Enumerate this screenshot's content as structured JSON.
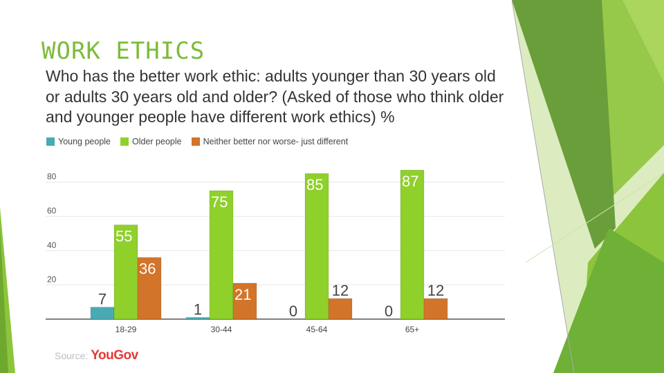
{
  "slide": {
    "title": "WORK ETHICS",
    "question": "Who has the better work ethic: adults younger than 30 years old or adults 30 years old and older? (Asked of those who think older and younger people have different work ethics) %"
  },
  "source": {
    "label": "Source:",
    "brand": "YouGov"
  },
  "colors": {
    "young": "#4aaab3",
    "older": "#8fd02b",
    "neither": "#d2742a",
    "accent": "#7dbb3a"
  },
  "chart_data": {
    "type": "bar",
    "categories": [
      "18-29",
      "30-44",
      "45-64",
      "65+"
    ],
    "series": [
      {
        "name": "Young people",
        "values": [
          7,
          1,
          0,
          0
        ]
      },
      {
        "name": "Older people",
        "values": [
          55,
          75,
          85,
          87
        ]
      },
      {
        "name": "Neither better nor worse- just different",
        "values": [
          36,
          21,
          12,
          12
        ]
      }
    ],
    "yticks": [
      20,
      40,
      60,
      80
    ],
    "ylim": [
      0,
      85
    ],
    "grid": true,
    "legend": "top-left"
  }
}
